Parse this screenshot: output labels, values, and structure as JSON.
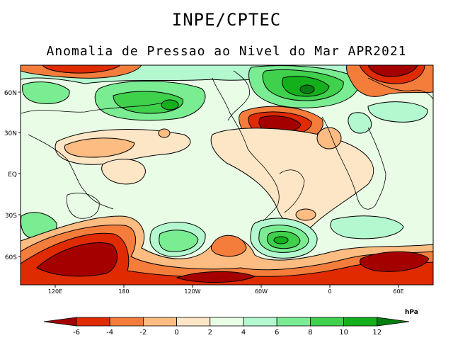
{
  "header": {
    "organization": "INPE/CPTEC",
    "title": "Anomalia de Pressao ao Nivel do Mar APR2021"
  },
  "map": {
    "lat_labels": [
      "60N",
      "30N",
      "EQ",
      "30S",
      "60S"
    ],
    "lon_labels": [
      "120E",
      "180",
      "120W",
      "60W",
      "0",
      "60E"
    ]
  },
  "colorbar": {
    "unit": "hPa",
    "ticks": [
      "-6",
      "-4",
      "-2",
      "0",
      "2",
      "4",
      "6",
      "8",
      "10",
      "12"
    ],
    "colors": [
      "#a50000",
      "#e02a00",
      "#f47d3c",
      "#fcbc82",
      "#fde6c6",
      "#e9fde6",
      "#b4f8d0",
      "#7aec92",
      "#3fd04c",
      "#14b01c",
      "#047e0e"
    ]
  }
}
